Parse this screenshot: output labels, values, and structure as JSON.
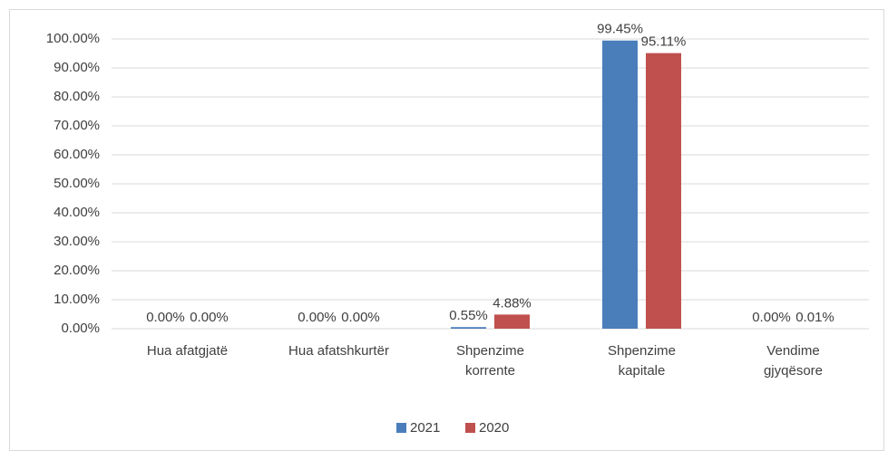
{
  "chart_data": {
    "type": "bar",
    "categories": [
      "Hua afatgjatë",
      "Hua afatshkurtër",
      "Shpenzime korrente",
      "Shpenzime kapitale",
      "Vendime gjyqësore"
    ],
    "series": [
      {
        "name": "2021",
        "color": "#4a7ebb",
        "values": [
          0,
          0,
          0.55,
          99.45,
          0
        ],
        "value_labels": [
          "0.00%",
          "0.00%",
          "0.55%",
          "99.45%",
          "0.00%"
        ]
      },
      {
        "name": "2020",
        "color": "#c0504d",
        "values": [
          0,
          0,
          4.88,
          95.11,
          0.01
        ],
        "value_labels": [
          "0.00%",
          "0.00%",
          "4.88%",
          "95.11%",
          "0.01%"
        ]
      }
    ],
    "ylim": [
      0,
      100
    ],
    "yticks": [
      {
        "value": 0,
        "label": "0.00%"
      },
      {
        "value": 10,
        "label": "10.00%"
      },
      {
        "value": 20,
        "label": "20.00%"
      },
      {
        "value": 30,
        "label": "30.00%"
      },
      {
        "value": 40,
        "label": "40.00%"
      },
      {
        "value": 50,
        "label": "50.00%"
      },
      {
        "value": 60,
        "label": "60.00%"
      },
      {
        "value": 70,
        "label": "70.00%"
      },
      {
        "value": 80,
        "label": "80.00%"
      },
      {
        "value": 90,
        "label": "90.00%"
      },
      {
        "value": 100,
        "label": "100.00%"
      }
    ],
    "grid": true,
    "legend": "bottom"
  }
}
